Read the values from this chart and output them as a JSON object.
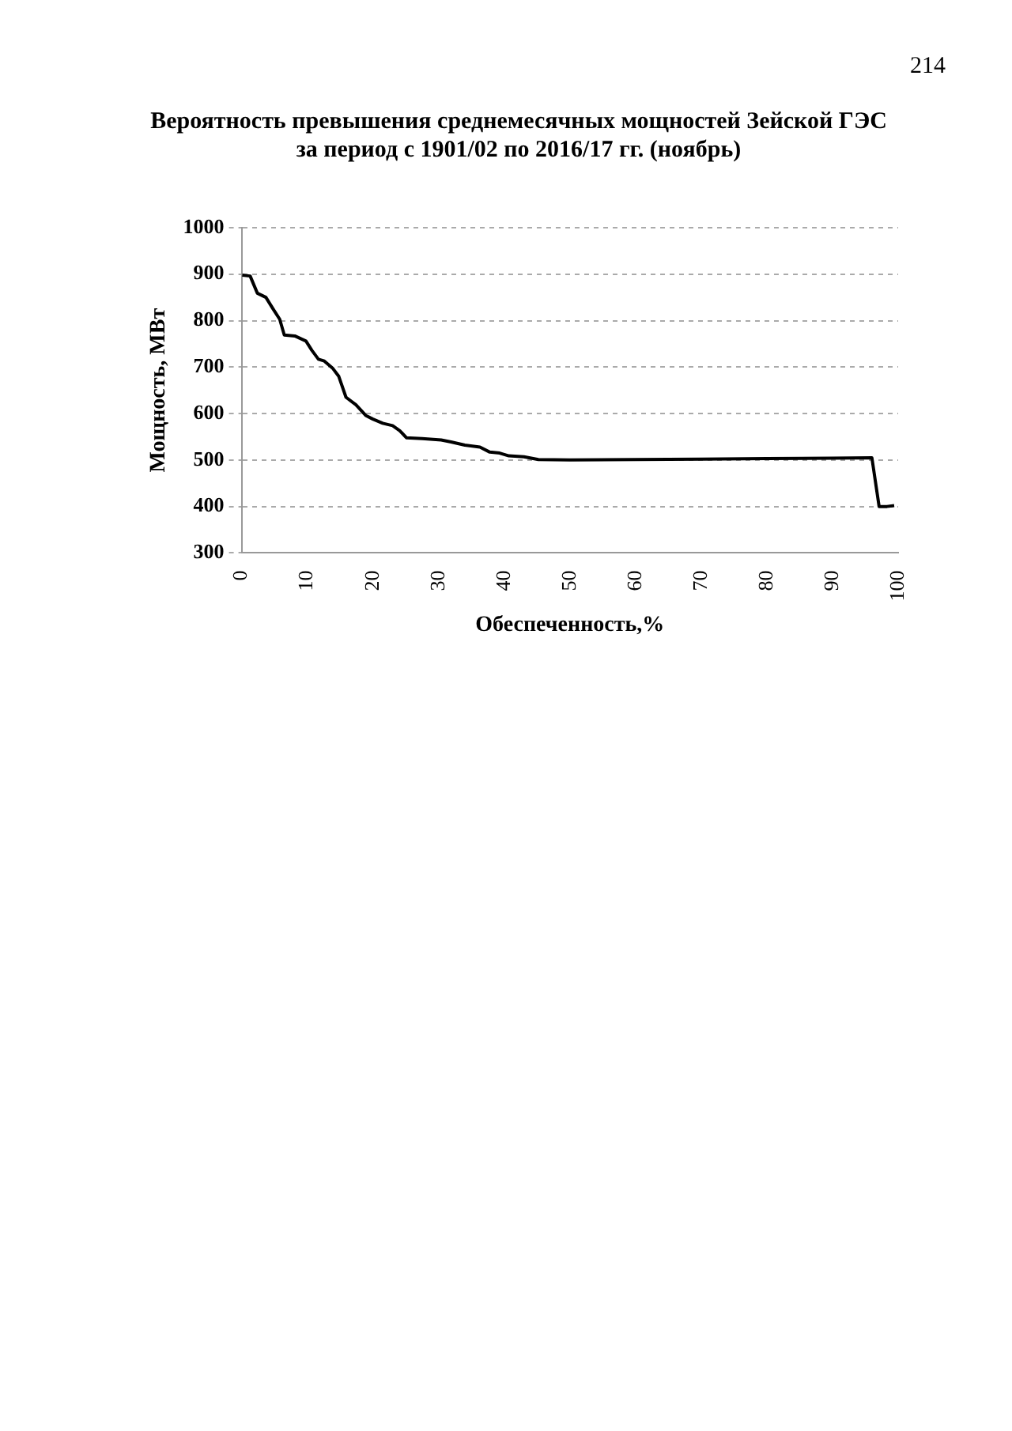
{
  "chart_data": {
    "type": "line",
    "title": "Вероятность превышения среднемесячных мощностей Зейской ГЭС\nза период с 1901/02 по 2016/17 гг. (ноябрь)",
    "xlabel": "Обеспеченность,%",
    "ylabel": "Мощность, МВт",
    "annotations": [
      "214"
    ],
    "x": [
      0.1,
      1.3,
      2.4,
      3.7,
      4.8,
      5.8,
      6.5,
      8.1,
      9.8,
      10.7,
      11.7,
      12.6,
      13.9,
      14.8,
      15.9,
      17.4,
      18.9,
      20,
      21.5,
      23,
      24.1,
      25.1,
      27.5,
      30.4,
      31.9,
      34,
      36.3,
      37.8,
      39.3,
      40.7,
      43,
      45.2,
      50,
      60,
      70,
      80,
      90,
      96,
      97.1,
      98.3,
      99.4
    ],
    "series": [
      {
        "color": "#000000",
        "values": [
          898,
          896,
          859,
          850,
          825,
          803,
          769,
          767,
          756,
          736,
          717,
          713,
          697,
          680,
          635,
          619,
          596,
          588,
          579,
          574,
          563,
          548,
          546,
          543,
          539,
          532,
          528,
          517,
          515,
          509,
          507,
          501,
          500,
          501,
          502,
          503,
          504,
          505,
          400,
          400,
          402
        ]
      }
    ],
    "xlim": [
      0,
      100
    ],
    "xticks": [
      0,
      10,
      20,
      30,
      40,
      50,
      60,
      70,
      80,
      90,
      100
    ],
    "ylim": [
      300,
      1000
    ],
    "yticks": [
      300,
      400,
      500,
      600,
      700,
      800,
      900,
      1000
    ],
    "grid": "y",
    "legend": false,
    "marker": "none",
    "line_style": "solid"
  }
}
